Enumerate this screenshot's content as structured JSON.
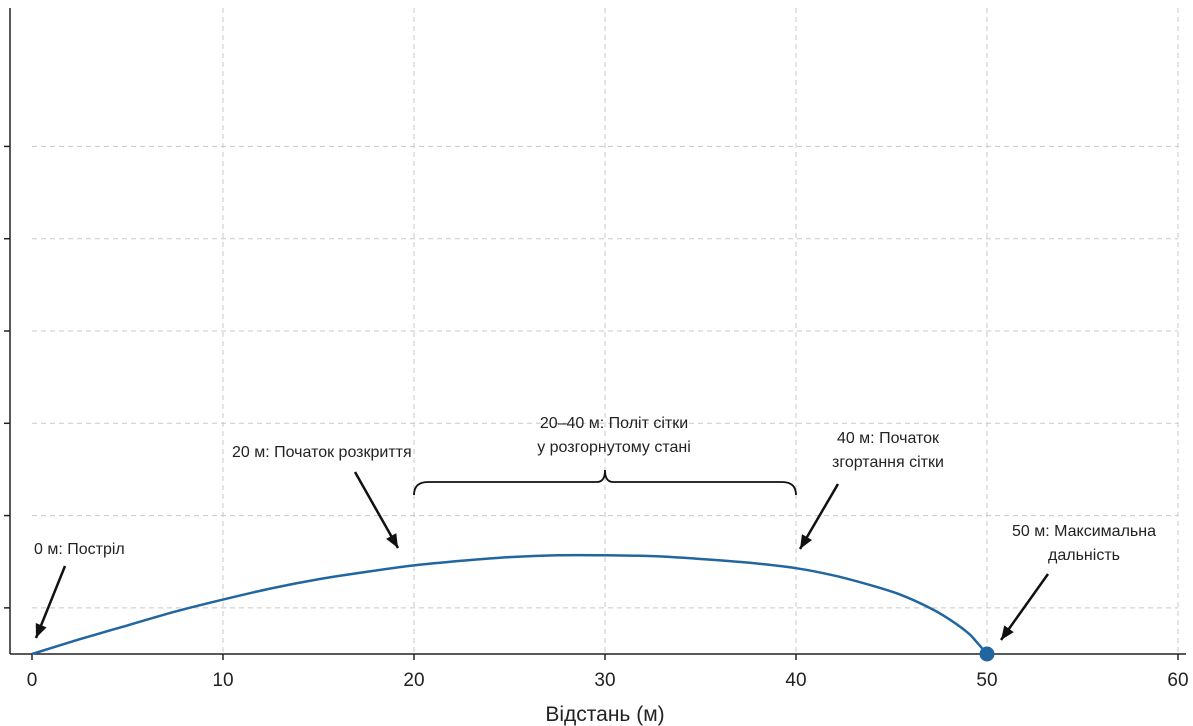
{
  "chart_data": {
    "type": "line",
    "title": "",
    "xlabel": "Відстань (м)",
    "ylabel": "",
    "xlim": [
      0,
      60
    ],
    "ylim": [
      0,
      7
    ],
    "x_ticks": [
      0,
      10,
      20,
      30,
      40,
      50,
      60
    ],
    "y_ticks": [
      0.5,
      1.5,
      2.5,
      3.5,
      4.5,
      5.5
    ],
    "grid": true,
    "colors": {
      "series": "#2166a0",
      "annotation": "#111111"
    },
    "series": [
      {
        "x": [
          0,
          2.5,
          5,
          7.5,
          10,
          12.5,
          15,
          17.5,
          20,
          22.5,
          25,
          27.5,
          30,
          32.5,
          35,
          37.5,
          40,
          42,
          44,
          45.5,
          47,
          48,
          49,
          49.5,
          50
        ],
        "y": [
          0,
          0.16,
          0.31,
          0.46,
          0.59,
          0.71,
          0.81,
          0.89,
          0.96,
          1.01,
          1.05,
          1.07,
          1.07,
          1.06,
          1.03,
          0.99,
          0.93,
          0.85,
          0.74,
          0.64,
          0.5,
          0.38,
          0.23,
          0.12,
          0
        ]
      }
    ],
    "marker": {
      "x": 50,
      "y": 0
    },
    "annotations": [
      {
        "text": "0 м: Постріл",
        "point": [
          0,
          0
        ]
      },
      {
        "text": "20 м: Початок розкриття",
        "point": [
          20,
          0.96
        ]
      },
      {
        "text": "20–40 м: Політ сітки\nу розгорнутому стані",
        "range": [
          20,
          40
        ]
      },
      {
        "text": "40 м: Початок\nзгортання сітки",
        "point": [
          40,
          0.93
        ]
      },
      {
        "text": "50 м: Максимальна\nдальність",
        "point": [
          50,
          0
        ]
      }
    ]
  }
}
